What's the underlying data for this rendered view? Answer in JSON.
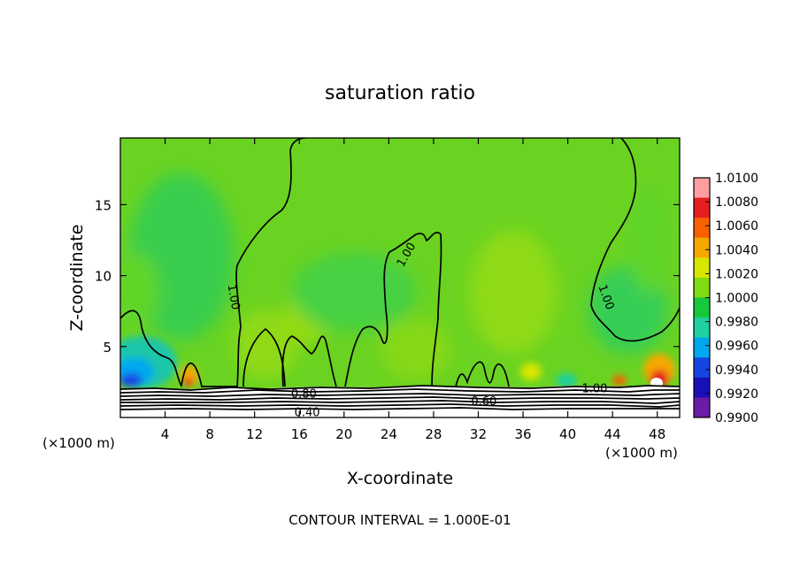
{
  "chart_data": {
    "type": "heatmap",
    "title": "saturation ratio",
    "xlabel": "X-coordinate",
    "ylabel": "Z-coordinate",
    "x_unit_left": "(×1000 m)",
    "x_unit_right": "(×1000 m)",
    "xlim": [
      0,
      50
    ],
    "ylim": [
      0,
      19.7
    ],
    "x_ticks": [
      4,
      8,
      12,
      16,
      20,
      24,
      28,
      32,
      36,
      40,
      44,
      48
    ],
    "y_ticks": [
      5,
      10,
      15
    ],
    "colorbar": {
      "ticks": [
        "1.0100",
        "1.0080",
        "1.0060",
        "1.0040",
        "1.0020",
        "1.0000",
        "0.9980",
        "0.9960",
        "0.9940",
        "0.9920",
        "0.9900"
      ],
      "colors": [
        "#ff9ea0",
        "#e51f1f",
        "#f86000",
        "#f5a800",
        "#d8e600",
        "#7fdc12",
        "#18c83c",
        "#1fd0a0",
        "#00a8ee",
        "#1446e2",
        "#1a10b8",
        "#6a1ba8"
      ]
    },
    "contour_labels": [
      {
        "text": "1.00",
        "x": 10.2,
        "y": 8.5,
        "rot": 80
      },
      {
        "text": "1.00",
        "x": 25.5,
        "y": 11.5,
        "rot": -60
      },
      {
        "text": "1.00",
        "x": 43.5,
        "y": 8.5,
        "rot": 70
      },
      {
        "text": "1.00",
        "x": 42.4,
        "y": 2.1,
        "rot": 0
      },
      {
        "text": "0.80",
        "x": 16.4,
        "y": 1.7,
        "rot": 0
      },
      {
        "text": "0.60",
        "x": 32.5,
        "y": 1.2,
        "rot": 0
      },
      {
        "text": "0.40",
        "x": 16.7,
        "y": 0.4,
        "rot": 0
      }
    ],
    "footnote": "CONTOUR INTERVAL = 1.000E-01"
  }
}
